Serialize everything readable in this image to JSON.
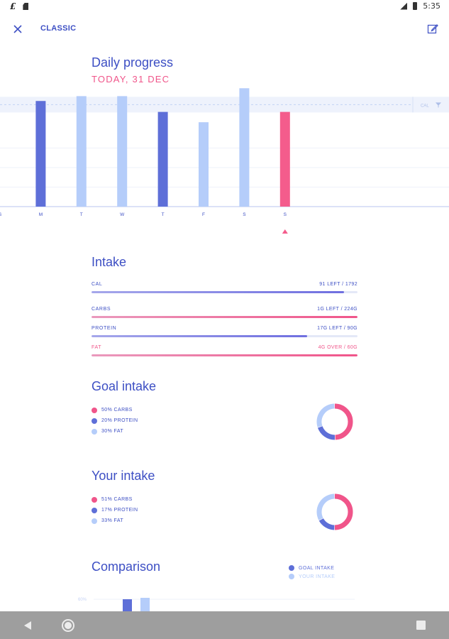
{
  "status": {
    "time": "5:35"
  },
  "app_bar": {
    "title": "CLASSIC"
  },
  "daily": {
    "title": "Daily progress",
    "date": "TODAY, 31 DEC"
  },
  "chart_data": {
    "type": "bar",
    "categories": [
      "S",
      "M",
      "T",
      "W",
      "T",
      "F",
      "S",
      "S"
    ],
    "values": [
      null,
      1740,
      1820,
      1820,
      1560,
      1390,
      1950,
      1560
    ],
    "highlight": [
      false,
      true,
      false,
      false,
      true,
      false,
      false,
      false
    ],
    "today_index": 7,
    "goal_label": "CAL",
    "goal_value": 1680,
    "ylim": [
      0,
      2000
    ],
    "colors": {
      "highlight": "#5e6fd8",
      "normal": "#b5cdfa",
      "today": "#f45c8c"
    }
  },
  "intake": {
    "title": "Intake",
    "rows": [
      {
        "label": "CAL",
        "value": "91 LEFT / 1792",
        "fill": 0.95,
        "color": "#6f6fe0",
        "label_color": "#3d4fc4"
      },
      {
        "label": "CARBS",
        "value": "1G LEFT / 224G",
        "fill": 1.0,
        "color": "#f0558a",
        "label_color": "#3d4fc4"
      },
      {
        "label": "PROTEIN",
        "value": "17G LEFT / 90G",
        "fill": 0.81,
        "color": "#6f6fe0",
        "label_color": "#3d4fc4"
      },
      {
        "label": "FAT",
        "value": "4G OVER / 60G",
        "fill": 1.0,
        "color": "#f0558a",
        "label_color": "#f0558a"
      }
    ]
  },
  "goal_intake": {
    "title": "Goal intake",
    "items": [
      {
        "label": "50% CARBS",
        "value": 50,
        "color": "#f0558a"
      },
      {
        "label": "20% PROTEIN",
        "value": 20,
        "color": "#5e6fd8"
      },
      {
        "label": "30% FAT",
        "value": 30,
        "color": "#b5cdfa"
      }
    ]
  },
  "your_intake": {
    "title": "Your intake",
    "items": [
      {
        "label": "51% CARBS",
        "value": 51,
        "color": "#f0558a"
      },
      {
        "label": "17% PROTEIN",
        "value": 17,
        "color": "#5e6fd8"
      },
      {
        "label": "33% FAT",
        "value": 33,
        "color": "#b5cdfa"
      }
    ]
  },
  "comparison": {
    "title": "Comparison",
    "legend": [
      {
        "label": "GOAL INTAKE",
        "color": "#5e6fd8"
      },
      {
        "label": "YOUR INTAKE",
        "color": "#b5cdfa"
      }
    ],
    "tick_label": "60%"
  }
}
